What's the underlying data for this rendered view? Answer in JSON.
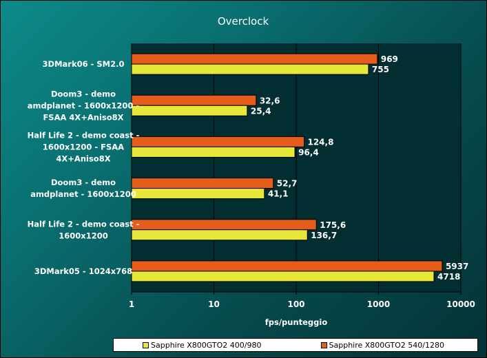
{
  "chart_data": {
    "type": "bar",
    "orientation": "horizontal",
    "title": "Overclock",
    "xlabel": "fps/punteggio",
    "ylabel": "",
    "xscale": "log",
    "xlim": [
      1,
      10000
    ],
    "x_ticks": [
      "1",
      "10",
      "100",
      "1000",
      "10000"
    ],
    "grid": true,
    "legend_position": "bottom",
    "categories": [
      [
        "3DMark06 - SM2.0"
      ],
      [
        "Doom3 - demo",
        "amdplanet - 1600x1200 -",
        "FSAA 4X+Aniso8X"
      ],
      [
        "Half Life 2 - demo coast -",
        "1600x1200 - FSAA",
        "4X+Aniso8X"
      ],
      [
        "Doom3 - demo",
        "amdplanet - 1600x1200"
      ],
      [
        "Half Life 2 - demo coast -",
        "1600x1200"
      ],
      [
        "3DMark05 - 1024x768"
      ]
    ],
    "series": [
      {
        "name": "Sapphire X800GTO2 540/1280",
        "color": "#e65c1a",
        "values": [
          969,
          32.6,
          124.8,
          52.7,
          175.6,
          5937
        ],
        "labels": [
          "969",
          "32,6",
          "124,8",
          "52,7",
          "175,6",
          "5937"
        ]
      },
      {
        "name": "Sapphire X800GTO2 400/980",
        "color": "#e8e83a",
        "values": [
          755,
          25.4,
          96.4,
          41.1,
          136.7,
          4718
        ],
        "labels": [
          "755",
          "25,4",
          "96,4",
          "41,1",
          "136,7",
          "4718"
        ]
      }
    ]
  },
  "legend": {
    "items": [
      {
        "name": "Sapphire X800GTO2 400/980",
        "color": "#e8e83a"
      },
      {
        "name": "Sapphire X800GTO2 540/1280",
        "color": "#e65c1a"
      }
    ]
  }
}
